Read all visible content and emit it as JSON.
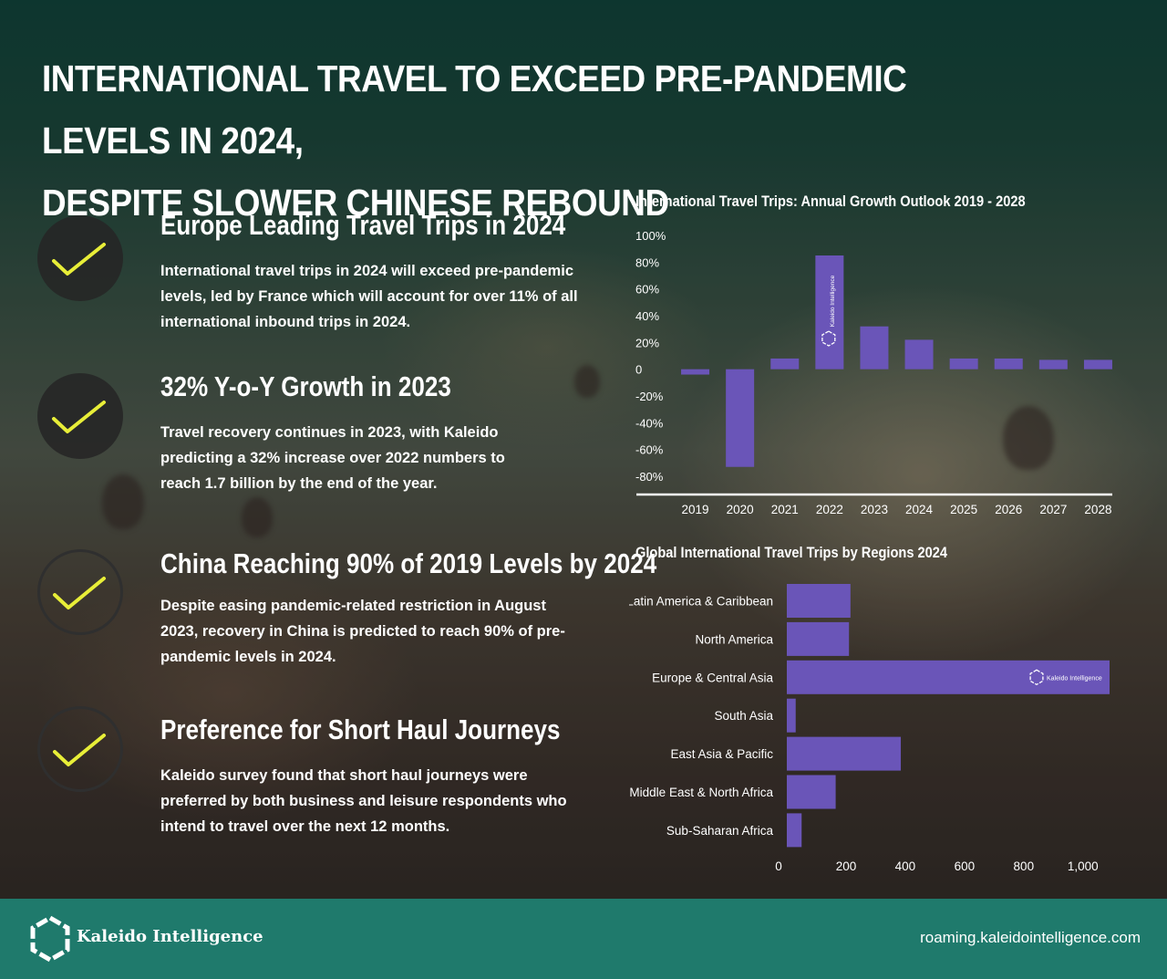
{
  "header": {
    "title_line1": "INTERNATIONAL TRAVEL TO EXCEED PRE-PANDEMIC LEVELS IN 2024,",
    "title_line2": "DESPITE SLOWER CHINESE REBOUND"
  },
  "features": [
    {
      "title": "Europe Leading Travel Trips in 2024",
      "body": "International travel trips in 2024 will exceed pre-pandemic levels, led by France which will account for over 11% of all international inbound trips in 2024."
    },
    {
      "title": "32% Y-o-Y Growth in 2023",
      "body": "Travel recovery continues in 2023, with Kaleido predicting a 32% increase over 2022 numbers to reach 1.7 billion by the end of the year."
    },
    {
      "title": "China Reaching 90% of 2019 Levels by 2024",
      "body": "Despite easing pandemic-related restriction in August 2023, recovery in China is predicted to reach 90% of pre-pandemic levels in 2024."
    },
    {
      "title": "Preference for Short Haul Journeys",
      "body": "Kaleido survey found that short haul journeys were preferred by both business and leisure respondents who intend to travel over the next 12 months."
    }
  ],
  "colors": {
    "bar": "#6a55b8",
    "check": "#e8ee38",
    "footer": "#1f7a6c"
  },
  "chart_data": [
    {
      "type": "bar",
      "title": "International Travel Trips: Annual Growth Outlook 2019 - 2028",
      "categories": [
        "2019",
        "2020",
        "2021",
        "2022",
        "2023",
        "2024",
        "2025",
        "2026",
        "2027",
        "2028"
      ],
      "values": [
        -4,
        -73,
        8,
        85,
        32,
        22,
        8,
        8,
        7,
        7
      ],
      "ylim": [
        -80,
        100
      ],
      "yticks": [
        "100%",
        "80%",
        "60%",
        "40%",
        "20%",
        "0",
        "-20%",
        "-40%",
        "-60%",
        "-80%"
      ],
      "grid": false,
      "watermark": "Kaleido Intelligence"
    },
    {
      "type": "bar",
      "orientation": "horizontal",
      "title": "Global International Travel Trips by Regions 2024",
      "categories": [
        "Latin America & Caribbean",
        "North America",
        "Europe & Central Asia",
        "South Asia",
        "East Asia & Pacific",
        "Middle East & North Africa",
        "Sub-Saharan Africa"
      ],
      "values": [
        215,
        210,
        1090,
        30,
        385,
        165,
        50
      ],
      "xlim": [
        0,
        1090
      ],
      "xticks": [
        "0",
        "200",
        "400",
        "600",
        "800",
        "1,000"
      ],
      "grid": false,
      "watermark": "Kaleido Intelligence"
    }
  ],
  "footer": {
    "brand": "Kaleido Intelligence",
    "website": "roaming.kaleidointelligence.com"
  }
}
